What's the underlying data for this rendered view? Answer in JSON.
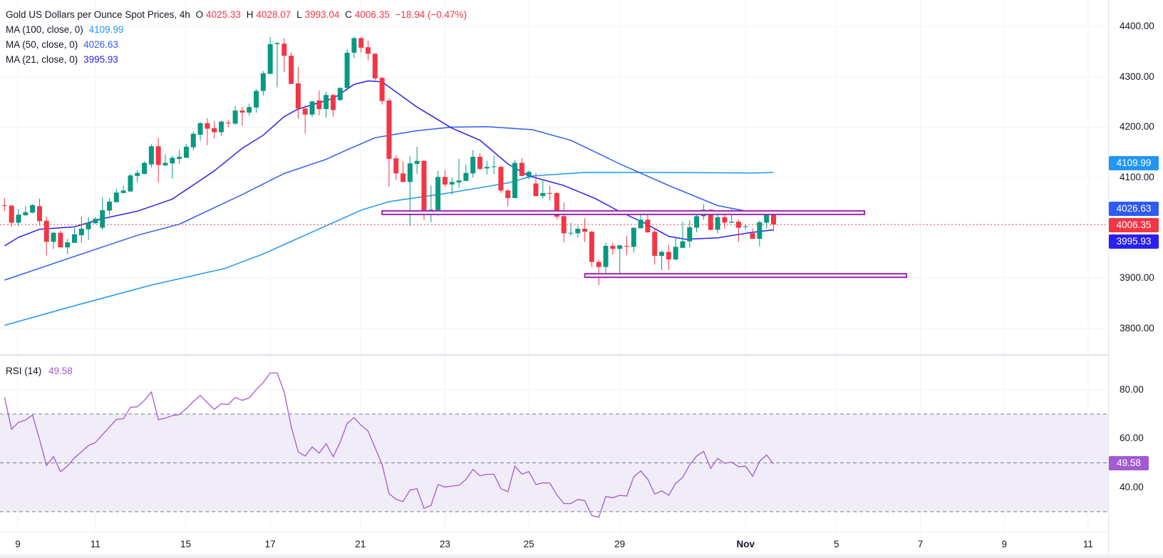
{
  "header": {
    "title": "Gold US Dollars per Ounce Spot Prices, 4h",
    "open_label": "O",
    "open": "4025.33",
    "high_label": "H",
    "high": "4028.07",
    "low_label": "L",
    "low": "3993.04",
    "close_label": "C",
    "close": "4006.35",
    "change": "−18.94 (−0.47%)"
  },
  "indicators": [
    {
      "label": "MA (100, close, 0)",
      "value": "4109.99",
      "color": "#2196f3"
    },
    {
      "label": "MA (50, close, 0)",
      "value": "4026.63",
      "color": "#2f5bf0"
    },
    {
      "label": "MA (21, close, 0)",
      "value": "3995.93",
      "color": "#2a1ff0"
    }
  ],
  "rsi_legend": {
    "label": "RSI (14)",
    "value": "49.58",
    "color": "#a25bd0"
  },
  "price_badge": {
    "value": "4006.35",
    "color": "#f23645"
  },
  "colors": {
    "up": "#089981",
    "down": "#f23645",
    "level": "#9c27b0",
    "rsi_band": "#f0ecf8",
    "grid": "#f0f3fa"
  },
  "chart_data": {
    "type": "candlestick",
    "title": "Gold US Dollars per Ounce Spot Prices, 4h",
    "ohlc_fields": [
      "open",
      "high",
      "low",
      "close"
    ],
    "candles": [
      [
        4045,
        4059,
        4033,
        4044
      ],
      [
        4044,
        4045,
        4002,
        4010
      ],
      [
        4010,
        4037,
        4003,
        4026
      ],
      [
        4025,
        4043,
        4023,
        4031
      ],
      [
        4030,
        4047,
        4029,
        4045
      ],
      [
        4043,
        4058,
        4005,
        4013
      ],
      [
        4014,
        4022,
        3945,
        3972
      ],
      [
        3972,
        3992,
        3958,
        3990
      ],
      [
        3990,
        3994,
        3961,
        3961
      ],
      [
        3961,
        3978,
        3948,
        3971
      ],
      [
        3970,
        4000,
        3970,
        3987
      ],
      [
        3985,
        4022,
        3970,
        3998
      ],
      [
        3997,
        4021,
        3976,
        4010
      ],
      [
        4009,
        4021,
        4007,
        4018
      ],
      [
        4000,
        4060,
        3996,
        4035
      ],
      [
        4034,
        4059,
        4025,
        4052
      ],
      [
        4051,
        4077,
        4050,
        4070
      ],
      [
        4069,
        4084,
        4069,
        4074
      ],
      [
        4072,
        4107,
        4072,
        4104
      ],
      [
        4103,
        4115,
        4090,
        4109
      ],
      [
        4107,
        4132,
        4106,
        4129
      ],
      [
        4126,
        4166,
        4120,
        4162
      ],
      [
        4162,
        4179,
        4090,
        4125
      ],
      [
        4124,
        4146,
        4122,
        4129
      ],
      [
        4128,
        4143,
        4098,
        4139
      ],
      [
        4137,
        4155,
        4127,
        4141
      ],
      [
        4139,
        4166,
        4139,
        4161
      ],
      [
        4160,
        4191,
        4154,
        4187
      ],
      [
        4185,
        4210,
        4173,
        4208
      ],
      [
        4208,
        4218,
        4164,
        4197
      ],
      [
        4198,
        4212,
        4177,
        4190
      ],
      [
        4190,
        4213,
        4183,
        4211
      ],
      [
        4209,
        4214,
        4200,
        4208
      ],
      [
        4207,
        4242,
        4205,
        4233
      ],
      [
        4233,
        4240,
        4203,
        4229
      ],
      [
        4229,
        4247,
        4223,
        4240
      ],
      [
        4239,
        4276,
        4229,
        4272
      ],
      [
        4272,
        4312,
        4263,
        4307
      ],
      [
        4306,
        4379,
        4306,
        4365
      ],
      [
        4365,
        4370,
        4279,
        4367
      ],
      [
        4366,
        4377,
        4310,
        4342
      ],
      [
        4342,
        4349,
        4286,
        4286
      ],
      [
        4287,
        4320,
        4217,
        4237
      ],
      [
        4237,
        4244,
        4187,
        4225
      ],
      [
        4225,
        4253,
        4220,
        4251
      ],
      [
        4253,
        4273,
        4224,
        4236
      ],
      [
        4236,
        4270,
        4219,
        4264
      ],
      [
        4264,
        4266,
        4221,
        4234
      ],
      [
        4254,
        4279,
        4252,
        4278
      ],
      [
        4278,
        4355,
        4273,
        4348
      ],
      [
        4348,
        4380,
        4337,
        4377
      ],
      [
        4377,
        4379,
        4348,
        4358
      ],
      [
        4359,
        4372,
        4333,
        4346
      ],
      [
        4346,
        4347,
        4293,
        4297
      ],
      [
        4298,
        4300,
        4245,
        4252
      ],
      [
        4253,
        4257,
        4082,
        4137
      ],
      [
        4138,
        4144,
        4095,
        4108
      ],
      [
        4108,
        4132,
        4091,
        4091
      ],
      [
        4091,
        4142,
        4004,
        4128
      ],
      [
        4127,
        4161,
        4107,
        4133
      ],
      [
        4133,
        4135,
        4015,
        4027
      ],
      [
        4027,
        4084,
        4011,
        4036
      ],
      [
        4035,
        4113,
        4024,
        4101
      ],
      [
        4101,
        4115,
        4081,
        4086
      ],
      [
        4086,
        4100,
        4066,
        4091
      ],
      [
        4090,
        4137,
        4079,
        4094
      ],
      [
        4093,
        4126,
        4093,
        4109
      ],
      [
        4108,
        4154,
        4100,
        4141
      ],
      [
        4141,
        4148,
        4115,
        4117
      ],
      [
        4118,
        4133,
        4106,
        4121
      ],
      [
        4121,
        4143,
        4107,
        4122
      ],
      [
        4121,
        4123,
        4069,
        4074
      ],
      [
        4074,
        4077,
        4043,
        4059
      ],
      [
        4059,
        4134,
        4059,
        4129
      ],
      [
        4129,
        4139,
        4102,
        4103
      ],
      [
        4102,
        4114,
        4096,
        4111
      ],
      [
        4088,
        4109,
        4062,
        4063
      ],
      [
        4063,
        4096,
        4058,
        4069
      ],
      [
        4069,
        4084,
        4054,
        4068
      ],
      [
        4069,
        4071,
        4016,
        4022
      ],
      [
        4023,
        4050,
        3971,
        3989
      ],
      [
        3989,
        4010,
        3984,
        3990
      ],
      [
        3989,
        4004,
        3980,
        3998
      ],
      [
        3998,
        4019,
        3972,
        3992
      ],
      [
        3992,
        3994,
        3922,
        3932
      ],
      [
        3932,
        3936,
        3886,
        3922
      ],
      [
        3922,
        3970,
        3907,
        3964
      ],
      [
        3964,
        3970,
        3946,
        3958
      ],
      [
        3958,
        3966,
        3909,
        3965
      ],
      [
        3964,
        3983,
        3945,
        3963
      ],
      [
        3962,
        4000,
        3951,
        4000
      ],
      [
        3999,
        4029,
        3999,
        4016
      ],
      [
        4016,
        4029,
        3990,
        3991
      ],
      [
        3992,
        3998,
        3927,
        3944
      ],
      [
        3944,
        3955,
        3916,
        3952
      ],
      [
        3952,
        3966,
        3916,
        3937
      ],
      [
        3937,
        3982,
        3935,
        3962
      ],
      [
        3960,
        4012,
        3960,
        3973
      ],
      [
        3973,
        4015,
        3960,
        4001
      ],
      [
        4000,
        4029,
        3991,
        4023
      ],
      [
        4023,
        4047,
        4016,
        4036
      ],
      [
        4036,
        4037,
        3994,
        3996
      ],
      [
        3996,
        4025,
        3989,
        4021
      ],
      [
        4021,
        4027,
        3998,
        4010
      ],
      [
        4010,
        4037,
        4010,
        4012
      ],
      [
        4012,
        4016,
        3972,
        4000
      ],
      [
        4002,
        4007,
        3996,
        4003
      ],
      [
        3989,
        3999,
        3978,
        3978
      ],
      [
        3978,
        4014,
        3963,
        4011
      ],
      [
        4010,
        4028,
        3998,
        4025
      ],
      [
        4025.33,
        4028.07,
        3993.04,
        4006.35
      ]
    ],
    "moving_averages": [
      {
        "name": "MA 100",
        "color": "#2196f3",
        "points": [
          [
            1,
            3806
          ],
          [
            11,
            3845
          ],
          [
            22,
            3886
          ],
          [
            32.5,
            3919
          ],
          [
            38,
            3948
          ],
          [
            47,
            4004
          ],
          [
            52,
            4035
          ],
          [
            56,
            4052
          ],
          [
            64,
            4068
          ],
          [
            73,
            4089
          ],
          [
            76.5,
            4103
          ],
          [
            84,
            4110
          ],
          [
            94,
            4110
          ],
          [
            108,
            4109
          ],
          [
            111,
            4109.99
          ]
        ]
      },
      {
        "name": "MA 50",
        "color": "#2f5bf0",
        "points": [
          [
            1,
            3896
          ],
          [
            11,
            3943
          ],
          [
            20,
            3985
          ],
          [
            26,
            4007
          ],
          [
            35,
            4066
          ],
          [
            41,
            4108
          ],
          [
            47,
            4136
          ],
          [
            50,
            4155
          ],
          [
            54,
            4179
          ],
          [
            57,
            4186
          ],
          [
            60,
            4193
          ],
          [
            65,
            4200
          ],
          [
            70,
            4201
          ],
          [
            76.5,
            4195
          ],
          [
            82,
            4174
          ],
          [
            89,
            4127
          ],
          [
            96,
            4084
          ],
          [
            103,
            4044
          ],
          [
            107.5,
            4032
          ],
          [
            111,
            4026.63
          ]
        ]
      },
      {
        "name": "MA 21",
        "color": "#2a1ff0",
        "points": [
          [
            1,
            3964
          ],
          [
            3,
            3981
          ],
          [
            6,
            3997
          ],
          [
            11,
            4002
          ],
          [
            15,
            4018
          ],
          [
            20,
            4033
          ],
          [
            25,
            4057
          ],
          [
            31,
            4113
          ],
          [
            35,
            4158
          ],
          [
            38,
            4184
          ],
          [
            41,
            4221
          ],
          [
            43,
            4236
          ],
          [
            48,
            4257
          ],
          [
            51,
            4285
          ],
          [
            53,
            4292
          ],
          [
            55,
            4290
          ],
          [
            56.4,
            4276
          ],
          [
            60,
            4240
          ],
          [
            65,
            4198
          ],
          [
            69,
            4174
          ],
          [
            73,
            4127
          ],
          [
            76,
            4103
          ],
          [
            81,
            4084
          ],
          [
            85.5,
            4058
          ],
          [
            89,
            4032
          ],
          [
            92.6,
            4009
          ],
          [
            96,
            3983
          ],
          [
            98.4,
            3977
          ],
          [
            103,
            3980
          ],
          [
            107.5,
            3990
          ],
          [
            111,
            3995.93
          ]
        ]
      }
    ],
    "levels": [
      {
        "name": "resistance",
        "price": 4030,
        "from_bar": 55,
        "to_bar": 124
      },
      {
        "name": "support",
        "price": 3905,
        "from_bar": 84,
        "to_bar": 130
      }
    ],
    "last_price": 4006.35,
    "ylim": [
      3800,
      4400
    ],
    "yticks": [
      "4400.00",
      "4300.00",
      "4200.00",
      "4100.00",
      "3900.00",
      "3800.00"
    ],
    "ytick_values": [
      4400,
      4300,
      4200,
      4100,
      3900,
      3800
    ],
    "xticks": [
      {
        "label": "9",
        "bar": 1.9
      },
      {
        "label": "11",
        "bar": 13
      },
      {
        "label": "15",
        "bar": 25.9
      },
      {
        "label": "17",
        "bar": 38
      },
      {
        "label": "21",
        "bar": 50.9
      },
      {
        "label": "23",
        "bar": 63
      },
      {
        "label": "25",
        "bar": 75
      },
      {
        "label": "29",
        "bar": 88
      },
      {
        "label": "Nov",
        "bar": 106
      },
      {
        "label": "5",
        "bar": 119
      },
      {
        "label": "7",
        "bar": 131
      },
      {
        "label": "9",
        "bar": 143
      },
      {
        "label": "11",
        "bar": 155
      }
    ],
    "rsi": {
      "period": 14,
      "ylim": [
        20,
        90
      ],
      "bands": [
        30,
        50,
        70
      ],
      "yticks": [
        "80.00",
        "60.00",
        "40.00"
      ],
      "ytick_values": [
        80,
        60,
        40
      ],
      "values": [
        76.9,
        63.8,
        66.6,
        67.5,
        69.6,
        59.6,
        48.9,
        52.5,
        46.4,
        48.7,
        52.0,
        54.5,
        57.1,
        58.3,
        61.5,
        64.7,
        67.8,
        68.1,
        72.7,
        73.0,
        75.6,
        79.0,
        67.7,
        68.3,
        69.3,
        69.8,
        72.2,
        75.1,
        77.6,
        74.6,
        71.9,
        74.2,
        73.9,
        76.8,
        75.6,
        76.6,
        80.0,
        82.9,
        86.8,
        86.8,
        79.0,
        64.9,
        54.5,
        52.8,
        56.5,
        54.0,
        57.8,
        52.5,
        58.4,
        66.1,
        68.5,
        65.4,
        63.0,
        56.2,
        49.4,
        37.4,
        35.0,
        34.1,
        38.9,
        39.4,
        31.4,
        32.5,
        41.1,
        40.1,
        40.5,
        40.8,
        43.2,
        47.3,
        44.7,
        45.3,
        45.3,
        39.4,
        38.2,
        48.6,
        45.4,
        46.4,
        41.1,
        41.8,
        41.7,
        36.9,
        33.3,
        33.3,
        35.0,
        34.5,
        28.4,
        27.7,
        36.2,
        35.7,
        36.7,
        36.4,
        44.3,
        46.7,
        43.3,
        37.2,
        38.5,
        36.7,
        41.6,
        44.0,
        49.2,
        52.8,
        54.7,
        47.7,
        51.8,
        49.8,
        50.3,
        48.4,
        48.6,
        44.5,
        50.6,
        53.2,
        49.58
      ]
    }
  }
}
